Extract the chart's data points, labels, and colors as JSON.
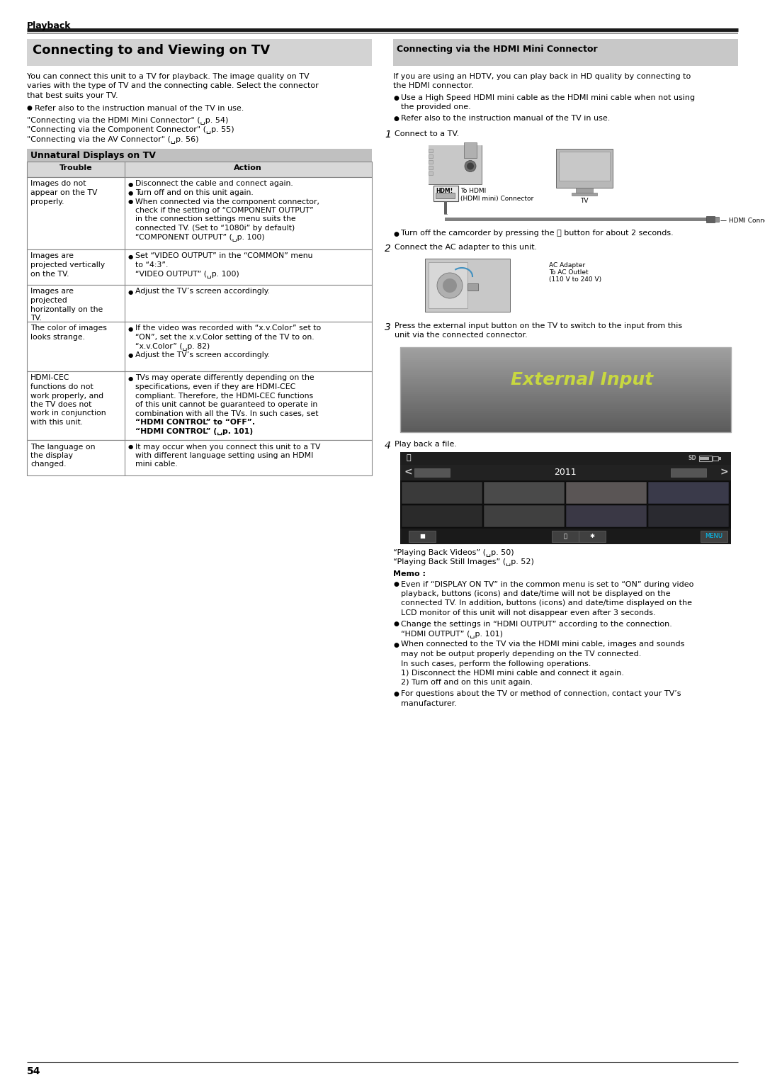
{
  "page_number": "54",
  "section_header": "Playback",
  "main_title": "Connecting to and Viewing on TV",
  "intro_text": "You can connect this unit to a TV for playback. The image quality on TV varies with the type of TV and the connecting cable. Select the connector that best suits your TV.",
  "bullet_intro": "Refer also to the instruction manual of the TV in use.",
  "links": [
    "“Connecting via the HDMI Mini Connector” (␣p. 54)",
    "“Connecting via the Component Connector” (␣p. 55)",
    "“Connecting via the AV Connector” (␣p. 56)"
  ],
  "unnatural_title": "Unnatural Displays on TV",
  "table_header_trouble": "Trouble",
  "table_header_action": "Action",
  "table_rows": [
    {
      "trouble": "Images do not\nappear on the TV\nproperly.",
      "action_lines": [
        {
          "bullet": true,
          "text": "Disconnect the cable and connect again."
        },
        {
          "bullet": true,
          "text": "Turn off and on this unit again."
        },
        {
          "bullet": true,
          "text": "When connected via the component connector,"
        },
        {
          "bullet": false,
          "text": "check if the setting of “COMPONENT OUTPUT”"
        },
        {
          "bullet": false,
          "text": "in the connection settings menu suits the"
        },
        {
          "bullet": false,
          "text": "connected TV. (Set to “1080i” by default)"
        },
        {
          "bullet": false,
          "text": "“COMPONENT OUTPUT” (␣p. 100)"
        }
      ]
    },
    {
      "trouble": "Images are\nprojected vertically\non the TV.",
      "action_lines": [
        {
          "bullet": true,
          "text": "Set “VIDEO OUTPUT” in the “COMMON” menu"
        },
        {
          "bullet": false,
          "text": "to “4:3”."
        },
        {
          "bullet": false,
          "text": "“VIDEO OUTPUT” (␣p. 100)"
        }
      ]
    },
    {
      "trouble": "Images are\nprojected\nhorizontally on the\nTV.",
      "action_lines": [
        {
          "bullet": true,
          "text": "Adjust the TV’s screen accordingly."
        }
      ]
    },
    {
      "trouble": "The color of images\nlooks strange.",
      "action_lines": [
        {
          "bullet": true,
          "text": "If the video was recorded with “x.v.Color” set to"
        },
        {
          "bullet": false,
          "text": "“ON”, set the x.v.Color setting of the TV to on."
        },
        {
          "bullet": false,
          "text": "“x.v.Color” (␣p. 82)"
        },
        {
          "bullet": true,
          "text": "Adjust the TV’s screen accordingly."
        }
      ]
    },
    {
      "trouble": "HDMI-CEC\nfunctions do not\nwork properly, and\nthe TV does not\nwork in conjunction\nwith this unit.",
      "action_lines": [
        {
          "bullet": true,
          "text": "TVs may operate differently depending on the"
        },
        {
          "bullet": false,
          "text": "specifications, even if they are HDMI-CEC"
        },
        {
          "bullet": false,
          "text": "compliant. Therefore, the HDMI-CEC functions"
        },
        {
          "bullet": false,
          "text": "of this unit cannot be guaranteed to operate in"
        },
        {
          "bullet": false,
          "text": "combination with all the TVs. In such cases, set"
        },
        {
          "bullet": false,
          "bold": true,
          "text": "“HDMI CONTROL” to “OFF”."
        },
        {
          "bullet": false,
          "bold": true,
          "text": "“HDMI CONTROL” (␣p. 101)"
        }
      ]
    },
    {
      "trouble": "The language on\nthe display\nchanged.",
      "action_lines": [
        {
          "bullet": true,
          "text": "It may occur when you connect this unit to a TV"
        },
        {
          "bullet": false,
          "text": "with different language setting using an HDMI"
        },
        {
          "bullet": false,
          "text": "mini cable."
        }
      ]
    }
  ],
  "right_section_title": "Connecting via the HDMI Mini Connector",
  "right_intro_lines": [
    "If you are using an HDTV, you can play back in HD quality by connecting to",
    "the HDMI connector."
  ],
  "right_bullets": [
    [
      "Use a High Speed HDMI mini cable as the HDMI mini cable when not using",
      "the provided one."
    ],
    [
      "Refer also to the instruction manual of the TV in use."
    ]
  ],
  "step1_text": "Connect to a TV.",
  "step1_note": "Turn off the camcorder by pressing the ⏻ button for about 2 seconds.",
  "step2_text": "Connect the AC adapter to this unit.",
  "step3_text_lines": [
    "Press the external input button on the TV to switch to the input from this",
    "unit via the connected connector."
  ],
  "step4_text": "Play back a file.",
  "after_step4_lines": [
    "“Playing Back Videos” (␣p. 50)",
    "“Playing Back Still Images” (␣p. 52)"
  ],
  "memo_title": "Memo :",
  "memo_bullets": [
    [
      "Even if “DISPLAY ON TV” in the common menu is set to “ON” during video",
      "playback, buttons (icons) and date/time will not be displayed on the",
      "connected TV. In addition, buttons (icons) and date/time displayed on the",
      "LCD monitor of this unit will not disappear even after 3 seconds."
    ],
    [
      "Change the settings in “HDMI OUTPUT” according to the connection.",
      "“HDMI OUTPUT” (␣p. 101)"
    ],
    [
      "When connected to the TV via the HDMI mini cable, images and sounds",
      "may not be output properly depending on the TV connected.",
      "In such cases, perform the following operations.",
      "1) Disconnect the HDMI mini cable and connect it again.",
      "2) Turn off and on this unit again."
    ],
    [
      "For questions about the TV or method of connection, contact your TV’s",
      "manufacturer."
    ]
  ],
  "bg_color": "#ffffff",
  "text_color": "#000000",
  "table_border_color": "#888888",
  "header_bg": "#d0d0d0",
  "unnatural_bg": "#c0c0c0",
  "right_title_bg": "#c8c8c8",
  "ext_input_bg_top": "#a0a0a0",
  "ext_input_bg_bot": "#606060",
  "ext_input_text": "#b8d060",
  "thumb_bg": "#1a1a1a",
  "thumb_header_bg": "#2a2a2a"
}
